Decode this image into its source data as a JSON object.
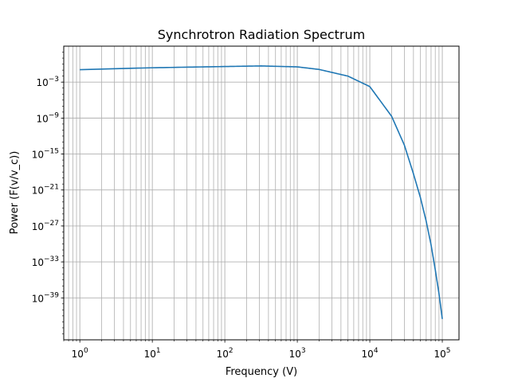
{
  "chart_data": {
    "type": "line",
    "title": "Synchrotron Radiation Spectrum",
    "xlabel": "Frequency (V)",
    "ylabel": "Power (F(v/v_c))",
    "xscale": "log",
    "yscale": "log",
    "xlim": [
      0.6,
      170000
    ],
    "ylim": [
      1e-46,
      1000.0
    ],
    "grid": "major and minor",
    "line_color": "#1f77b4",
    "x_ticks": [
      {
        "base": "10",
        "exp": "0"
      },
      {
        "base": "10",
        "exp": "1"
      },
      {
        "base": "10",
        "exp": "2"
      },
      {
        "base": "10",
        "exp": "3"
      },
      {
        "base": "10",
        "exp": "4"
      },
      {
        "base": "10",
        "exp": "5"
      }
    ],
    "y_ticks": [
      {
        "base": "10",
        "exp": "−3"
      },
      {
        "base": "10",
        "exp": "−9"
      },
      {
        "base": "10",
        "exp": "−15"
      },
      {
        "base": "10",
        "exp": "−21"
      },
      {
        "base": "10",
        "exp": "−27"
      },
      {
        "base": "10",
        "exp": "−33"
      },
      {
        "base": "10",
        "exp": "−39"
      }
    ],
    "series": [
      {
        "x": [
          1,
          10,
          100,
          316,
          1000,
          2000,
          5000,
          10000,
          20000,
          30000,
          40000,
          50000,
          60000,
          70000,
          80000,
          90000,
          100000
        ],
        "y": [
          0.12,
          0.25,
          0.4,
          0.5,
          0.35,
          0.13,
          0.01,
          0.00018,
          2e-09,
          3e-14,
          5e-19,
          5e-23,
          6e-27,
          7e-31,
          5e-35,
          5e-39,
          3e-43
        ]
      }
    ]
  }
}
